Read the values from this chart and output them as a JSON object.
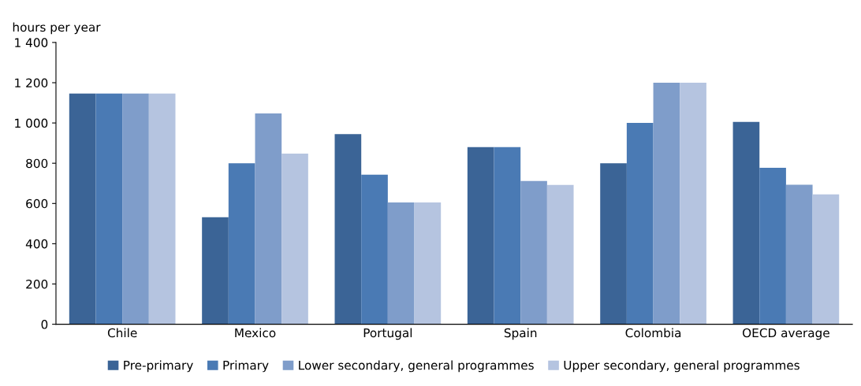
{
  "chart_data": {
    "type": "bar",
    "ylabel": "hours per year",
    "categories": [
      "Chile",
      "Mexico",
      "Portugal",
      "Spain",
      "Colombia",
      "OECD average"
    ],
    "series": [
      {
        "name": "Pre-primary",
        "color": "#3b6496",
        "values": [
          1146,
          532,
          945,
          880,
          800,
          1005
        ]
      },
      {
        "name": "Primary",
        "color": "#4a7ab4",
        "values": [
          1146,
          800,
          743,
          880,
          1000,
          777
        ]
      },
      {
        "name": "Lower secondary, general programmes",
        "color": "#7f9dca",
        "values": [
          1146,
          1047,
          605,
          712,
          1200,
          693
        ]
      },
      {
        "name": "Upper secondary, general programmes",
        "color": "#b5c4e0",
        "values": [
          1146,
          848,
          605,
          692,
          1200,
          645
        ]
      }
    ],
    "ylim": [
      0,
      1400
    ],
    "yticks": [
      0,
      200,
      400,
      600,
      800,
      {
        "value": 1000,
        "label": "1 000"
      },
      {
        "value": 1200,
        "label": "1 200"
      },
      {
        "value": 1400,
        "label": "1 400"
      }
    ],
    "grid": false,
    "legend": "bottom"
  }
}
